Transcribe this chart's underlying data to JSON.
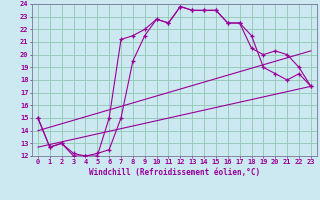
{
  "xlabel": "Windchill (Refroidissement éolien,°C)",
  "background_color": "#cce8f0",
  "grid_color": "#99ccbb",
  "line_color": "#990099",
  "xlim": [
    -0.5,
    23.5
  ],
  "ylim": [
    12,
    24
  ],
  "yticks": [
    12,
    13,
    14,
    15,
    16,
    17,
    18,
    19,
    20,
    21,
    22,
    23,
    24
  ],
  "xticks": [
    0,
    1,
    2,
    3,
    4,
    5,
    6,
    7,
    8,
    9,
    10,
    11,
    12,
    13,
    14,
    15,
    16,
    17,
    18,
    19,
    20,
    21,
    22,
    23
  ],
  "line1_x": [
    0,
    1,
    2,
    3,
    4,
    5,
    6,
    7,
    8,
    9,
    10,
    11,
    12,
    13,
    14,
    15,
    16,
    17,
    18,
    19,
    20,
    21,
    22,
    23
  ],
  "line1_y": [
    15,
    12.7,
    13.0,
    12.0,
    12.0,
    12.0,
    15.0,
    21.2,
    21.5,
    22.0,
    22.8,
    22.5,
    23.8,
    23.5,
    23.5,
    23.5,
    22.5,
    22.5,
    21.5,
    19.0,
    18.5,
    18.0,
    18.5,
    17.5
  ],
  "line2_x": [
    0,
    1,
    2,
    3,
    4,
    5,
    6,
    7,
    8,
    9,
    10,
    11,
    12,
    13,
    14,
    15,
    16,
    17,
    18,
    19,
    20,
    21,
    22,
    23
  ],
  "line2_y": [
    15,
    12.7,
    13.0,
    12.2,
    12.0,
    12.2,
    12.5,
    15.0,
    19.5,
    21.5,
    22.8,
    22.5,
    23.8,
    23.5,
    23.5,
    23.5,
    22.5,
    22.5,
    20.5,
    20.0,
    20.3,
    20.0,
    19.0,
    17.5
  ],
  "line3_x": [
    0,
    23
  ],
  "line3_y": [
    12.7,
    17.5
  ],
  "line4_x": [
    0,
    23
  ],
  "line4_y": [
    14.0,
    20.3
  ]
}
